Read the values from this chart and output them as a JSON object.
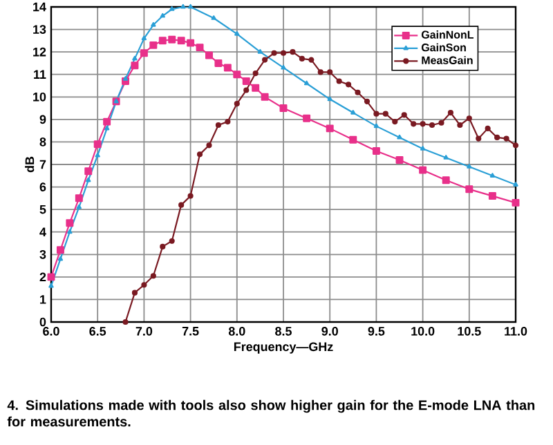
{
  "chart_data": {
    "type": "line",
    "xlabel": "Frequency—GHz",
    "ylabel": "dB",
    "annotations": [
      "4. Simulations made with tools also show higher gain for the E-mode LNA than for measurements."
    ],
    "xlim": [
      6,
      11
    ],
    "ylim": [
      0,
      14
    ],
    "xticks": [
      {
        "value": 6,
        "label": "6.0"
      },
      {
        "value": 6.5,
        "label": "6.5"
      },
      {
        "value": 7,
        "label": "7.0"
      },
      {
        "value": 7.5,
        "label": "7.5"
      },
      {
        "value": 8,
        "label": "8.0"
      },
      {
        "value": 8.5,
        "label": "8.5"
      },
      {
        "value": 9,
        "label": "9.0"
      },
      {
        "value": 9.5,
        "label": "9.5"
      },
      {
        "value": 10,
        "label": "10.0"
      },
      {
        "value": 10.5,
        "label": "10.5"
      },
      {
        "value": 11,
        "label": "11.0"
      }
    ],
    "yticks": [
      0,
      1,
      2,
      3,
      4,
      5,
      6,
      7,
      8,
      9,
      10,
      11,
      12,
      13,
      14
    ],
    "grid": true,
    "legend": "top right",
    "series": [
      {
        "name": "GainNonL",
        "color": "#e8308a",
        "marker": "square",
        "x": [
          6.0,
          6.1,
          6.2,
          6.3,
          6.4,
          6.5,
          6.6,
          6.7,
          6.8,
          6.9,
          7.0,
          7.1,
          7.2,
          7.3,
          7.4,
          7.5,
          7.6,
          7.7,
          7.8,
          7.9,
          8.0,
          8.1,
          8.2,
          8.3,
          8.5,
          8.75,
          9.0,
          9.25,
          9.5,
          9.75,
          10.0,
          10.25,
          10.5,
          10.75,
          11.0
        ],
        "values": [
          2.0,
          3.2,
          4.4,
          5.5,
          6.7,
          7.9,
          8.9,
          9.8,
          10.7,
          11.4,
          11.95,
          12.3,
          12.5,
          12.55,
          12.5,
          12.4,
          12.2,
          11.85,
          11.5,
          11.3,
          11.0,
          10.7,
          10.4,
          10.0,
          9.5,
          9.05,
          8.6,
          8.1,
          7.6,
          7.2,
          6.75,
          6.3,
          5.9,
          5.6,
          5.3
        ]
      },
      {
        "name": "GainSon",
        "color": "#2a9fd6",
        "marker": "triangle",
        "x": [
          6.0,
          6.1,
          6.2,
          6.3,
          6.4,
          6.5,
          6.6,
          6.7,
          6.8,
          6.9,
          7.0,
          7.1,
          7.2,
          7.3,
          7.42,
          7.5,
          7.75,
          8.0,
          8.25,
          8.5,
          8.75,
          9.0,
          9.25,
          9.5,
          9.75,
          10.0,
          10.25,
          10.5,
          10.75,
          11.0
        ],
        "values": [
          1.6,
          2.8,
          4.0,
          5.1,
          6.3,
          7.4,
          8.6,
          9.8,
          10.8,
          11.7,
          12.6,
          13.2,
          13.6,
          13.9,
          14.0,
          14.0,
          13.5,
          12.8,
          12.0,
          11.3,
          10.6,
          9.9,
          9.3,
          8.7,
          8.2,
          7.7,
          7.3,
          6.9,
          6.5,
          6.1
        ]
      },
      {
        "name": "MeasGain",
        "color": "#7a1a22",
        "marker": "circle",
        "x": [
          6.8,
          6.9,
          7.0,
          7.1,
          7.2,
          7.3,
          7.4,
          7.5,
          7.6,
          7.7,
          7.8,
          7.9,
          8.0,
          8.1,
          8.2,
          8.3,
          8.4,
          8.5,
          8.6,
          8.7,
          8.8,
          8.9,
          9.0,
          9.1,
          9.2,
          9.3,
          9.4,
          9.5,
          9.6,
          9.7,
          9.8,
          9.9,
          10.0,
          10.1,
          10.2,
          10.3,
          10.4,
          10.5,
          10.6,
          10.7,
          10.8,
          10.9,
          11.0
        ],
        "values": [
          0,
          1.3,
          1.65,
          2.05,
          3.35,
          3.6,
          5.2,
          5.6,
          7.45,
          7.85,
          8.75,
          8.9,
          9.7,
          10.3,
          11.05,
          11.65,
          11.95,
          11.95,
          12.0,
          11.7,
          11.65,
          11.1,
          11.1,
          10.7,
          10.55,
          10.2,
          9.8,
          9.25,
          9.25,
          8.9,
          9.2,
          8.8,
          8.8,
          8.75,
          8.85,
          9.3,
          8.75,
          9.05,
          8.15,
          8.6,
          8.2,
          8.15,
          7.85
        ]
      }
    ]
  }
}
